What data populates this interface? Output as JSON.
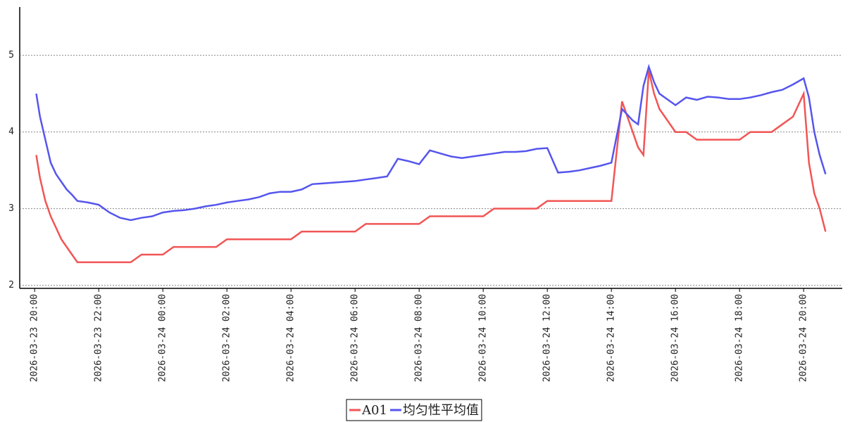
{
  "chart_data": {
    "type": "line",
    "x": [
      "2026-03-23 20:03",
      "2026-03-23 20:10",
      "2026-03-23 20:20",
      "2026-03-23 20:30",
      "2026-03-23 20:40",
      "2026-03-23 20:50",
      "2026-03-23 21:00",
      "2026-03-23 21:10",
      "2026-03-23 21:20",
      "2026-03-23 21:40",
      "2026-03-23 22:00",
      "2026-03-23 22:20",
      "2026-03-23 22:40",
      "2026-03-23 23:00",
      "2026-03-23 23:20",
      "2026-03-23 23:40",
      "2026-03-24 00:00",
      "2026-03-24 00:20",
      "2026-03-24 00:40",
      "2026-03-24 01:00",
      "2026-03-24 01:20",
      "2026-03-24 01:40",
      "2026-03-24 02:00",
      "2026-03-24 02:20",
      "2026-03-24 02:40",
      "2026-03-24 03:00",
      "2026-03-24 03:20",
      "2026-03-24 03:40",
      "2026-03-24 04:00",
      "2026-03-24 04:20",
      "2026-03-24 04:40",
      "2026-03-24 05:00",
      "2026-03-24 05:20",
      "2026-03-24 05:40",
      "2026-03-24 06:00",
      "2026-03-24 06:20",
      "2026-03-24 06:40",
      "2026-03-24 07:00",
      "2026-03-24 07:20",
      "2026-03-24 07:40",
      "2026-03-24 08:00",
      "2026-03-24 08:20",
      "2026-03-24 08:40",
      "2026-03-24 09:00",
      "2026-03-24 09:20",
      "2026-03-24 09:40",
      "2026-03-24 10:00",
      "2026-03-24 10:20",
      "2026-03-24 10:40",
      "2026-03-24 11:00",
      "2026-03-24 11:20",
      "2026-03-24 11:40",
      "2026-03-24 12:00",
      "2026-03-24 12:20",
      "2026-03-24 12:40",
      "2026-03-24 13:00",
      "2026-03-24 13:20",
      "2026-03-24 13:40",
      "2026-03-24 14:00",
      "2026-03-24 14:20",
      "2026-03-24 14:40",
      "2026-03-24 14:50",
      "2026-03-24 15:00",
      "2026-03-24 15:10",
      "2026-03-24 15:20",
      "2026-03-24 15:30",
      "2026-03-24 15:40",
      "2026-03-24 16:00",
      "2026-03-24 16:20",
      "2026-03-24 16:40",
      "2026-03-24 17:00",
      "2026-03-24 17:20",
      "2026-03-24 17:40",
      "2026-03-24 18:00",
      "2026-03-24 18:20",
      "2026-03-24 18:40",
      "2026-03-24 19:00",
      "2026-03-24 19:20",
      "2026-03-24 19:40",
      "2026-03-24 20:00",
      "2026-03-24 20:10",
      "2026-03-24 20:20",
      "2026-03-24 20:30",
      "2026-03-24 20:41"
    ],
    "series": [
      {
        "name": "A01",
        "color": "#f25555",
        "values": [
          3.7,
          3.4,
          3.1,
          2.9,
          2.75,
          2.6,
          2.5,
          2.4,
          2.3,
          2.3,
          2.3,
          2.3,
          2.3,
          2.3,
          2.4,
          2.4,
          2.4,
          2.5,
          2.5,
          2.5,
          2.5,
          2.5,
          2.6,
          2.6,
          2.6,
          2.6,
          2.6,
          2.6,
          2.6,
          2.7,
          2.7,
          2.7,
          2.7,
          2.7,
          2.7,
          2.8,
          2.8,
          2.8,
          2.8,
          2.8,
          2.8,
          2.9,
          2.9,
          2.9,
          2.9,
          2.9,
          2.9,
          3.0,
          3.0,
          3.0,
          3.0,
          3.0,
          3.1,
          3.1,
          3.1,
          3.1,
          3.1,
          3.1,
          3.1,
          4.4,
          4.0,
          3.8,
          3.7,
          4.8,
          4.5,
          4.3,
          4.2,
          4.0,
          4.0,
          3.9,
          3.9,
          3.9,
          3.9,
          3.9,
          4.0,
          4.0,
          4.0,
          4.1,
          4.2,
          4.5,
          3.6,
          3.2,
          3.0,
          2.7
        ]
      },
      {
        "name": "均匀性平均值",
        "color": "#5555ee",
        "values": [
          4.5,
          4.2,
          3.9,
          3.6,
          3.45,
          3.35,
          3.25,
          3.18,
          3.1,
          3.08,
          3.05,
          2.95,
          2.88,
          2.85,
          2.88,
          2.9,
          2.95,
          2.97,
          2.98,
          3.0,
          3.03,
          3.05,
          3.08,
          3.1,
          3.12,
          3.15,
          3.2,
          3.22,
          3.22,
          3.25,
          3.32,
          3.33,
          3.34,
          3.35,
          3.36,
          3.38,
          3.4,
          3.42,
          3.65,
          3.62,
          3.58,
          3.76,
          3.72,
          3.68,
          3.66,
          3.68,
          3.7,
          3.72,
          3.74,
          3.74,
          3.75,
          3.78,
          3.79,
          3.47,
          3.48,
          3.5,
          3.53,
          3.56,
          3.6,
          4.3,
          4.15,
          4.1,
          4.6,
          4.85,
          4.65,
          4.5,
          4.45,
          4.35,
          4.45,
          4.42,
          4.46,
          4.45,
          4.43,
          4.43,
          4.45,
          4.48,
          4.52,
          4.55,
          4.62,
          4.7,
          4.45,
          4.0,
          3.7,
          3.45
        ]
      }
    ],
    "xlim": [
      "2026-03-23 19:32",
      "2026-03-24 21:11"
    ],
    "xticks": [
      "2026-03-23 20:00",
      "2026-03-23 22:00",
      "2026-03-24 00:00",
      "2026-03-24 02:00",
      "2026-03-24 04:00",
      "2026-03-24 06:00",
      "2026-03-24 08:00",
      "2026-03-24 10:00",
      "2026-03-24 12:00",
      "2026-03-24 14:00",
      "2026-03-24 16:00",
      "2026-03-24 18:00",
      "2026-03-24 20:00"
    ],
    "ylim": [
      1.96,
      5.63
    ],
    "yticks": [
      2,
      3,
      4,
      5
    ],
    "grid": true,
    "legend": "bottom"
  }
}
